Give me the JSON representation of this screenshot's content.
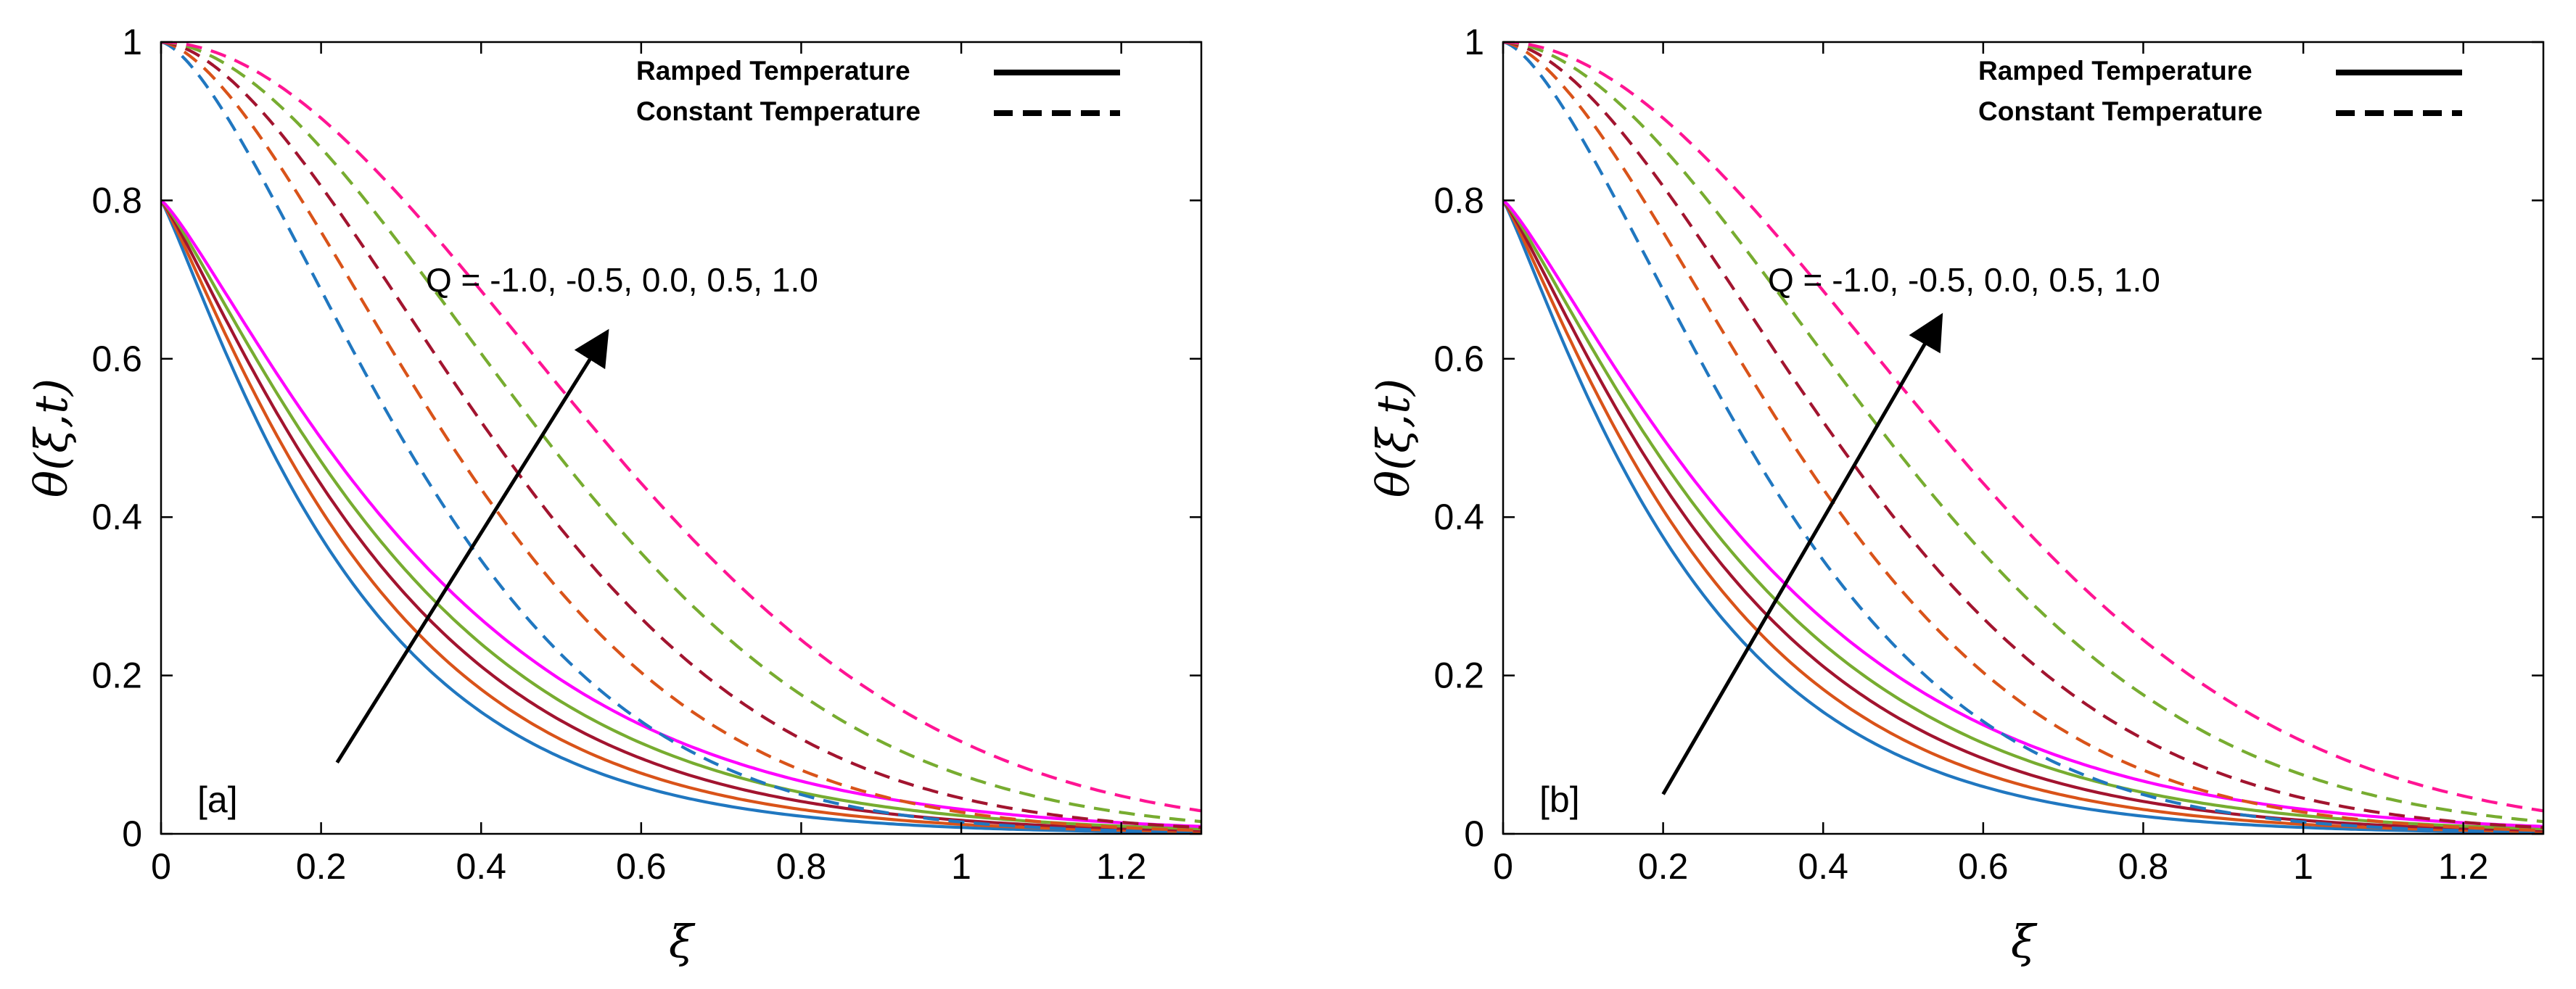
{
  "chart_data": [
    {
      "type": "line",
      "panel_label": "[a]",
      "xlabel": "ξ",
      "ylabel": "θ(ξ,t)",
      "xlim": [
        0,
        1.3
      ],
      "ylim": [
        0,
        1.0
      ],
      "xticks": [
        0,
        0.2,
        0.4,
        0.6,
        0.8,
        1,
        1.2
      ],
      "xtick_labels": [
        "0",
        "0.2",
        "0.4",
        "0.6",
        "0.8",
        "1",
        "1.2"
      ],
      "yticks": [
        0,
        0.2,
        0.4,
        0.6,
        0.8,
        1
      ],
      "ytick_labels": [
        "0",
        "0.2",
        "0.4",
        "0.6",
        "0.8",
        "1"
      ],
      "legend": {
        "placement": "top-right",
        "entries": [
          {
            "label": "Ramped Temperature",
            "style": "solid"
          },
          {
            "label": "Constant Temperature",
            "style": "dashed"
          }
        ]
      },
      "annotation": {
        "text": "Q = -1.0, -0.5, 0.0, 0.5, 1.0",
        "arrow_from": [
          0.22,
          0.09
        ],
        "arrow_to": [
          0.555,
          0.63
        ]
      },
      "series": [
        {
          "name": "Ramped, Q = -1.0",
          "style": "solid",
          "color": "#2077c0",
          "y0": 0.8,
          "k": 4.6,
          "p": 1.12
        },
        {
          "name": "Ramped, Q = -0.5",
          "style": "solid",
          "color": "#d95319",
          "y0": 0.8,
          "k": 4.2,
          "p": 1.14
        },
        {
          "name": "Ramped, Q = 0.0",
          "style": "solid",
          "color": "#a2142f",
          "y0": 0.8,
          "k": 3.85,
          "p": 1.16
        },
        {
          "name": "Ramped, Q = 0.5",
          "style": "solid",
          "color": "#77ac30",
          "y0": 0.8,
          "k": 3.55,
          "p": 1.18
        },
        {
          "name": "Ramped, Q = 1.0",
          "style": "solid",
          "color": "#ff00ff",
          "y0": 0.8,
          "k": 3.25,
          "p": 1.2
        },
        {
          "name": "Constant, Q = -1.0",
          "style": "dashed",
          "color": "#2077c0",
          "y0": 1.0,
          "k": 4.2,
          "p": 1.5
        },
        {
          "name": "Constant, Q = -0.5",
          "style": "dashed",
          "color": "#d95319",
          "y0": 1.0,
          "k": 3.6,
          "p": 1.6
        },
        {
          "name": "Constant, Q = 0.0",
          "style": "dashed",
          "color": "#a2142f",
          "y0": 1.0,
          "k": 3.1,
          "p": 1.7
        },
        {
          "name": "Constant, Q = 0.5",
          "style": "dashed",
          "color": "#77ac30",
          "y0": 1.0,
          "k": 2.6,
          "p": 1.8
        },
        {
          "name": "Constant, Q = 1.0",
          "style": "dashed",
          "color": "#ff1493",
          "y0": 1.0,
          "k": 2.15,
          "p": 1.9
        }
      ]
    },
    {
      "type": "line",
      "panel_label": "[b]",
      "xlabel": "ξ",
      "ylabel": "θ(ξ,t)",
      "xlim": [
        0,
        1.3
      ],
      "ylim": [
        0,
        1.0
      ],
      "xticks": [
        0,
        0.2,
        0.4,
        0.6,
        0.8,
        1,
        1.2
      ],
      "xtick_labels": [
        "0",
        "0.2",
        "0.4",
        "0.6",
        "0.8",
        "1",
        "1.2"
      ],
      "yticks": [
        0,
        0.2,
        0.4,
        0.6,
        0.8,
        1
      ],
      "ytick_labels": [
        "0",
        "0.2",
        "0.4",
        "0.6",
        "0.8",
        "1"
      ],
      "legend": {
        "placement": "top-right",
        "entries": [
          {
            "label": "Ramped Temperature",
            "style": "solid"
          },
          {
            "label": "Constant Temperature",
            "style": "dashed"
          }
        ]
      },
      "annotation": {
        "text": "Q = -1.0, -0.5, 0.0, 0.5, 1.0",
        "arrow_from": [
          0.2,
          0.05
        ],
        "arrow_to": [
          0.545,
          0.65
        ]
      },
      "series": [
        {
          "name": "Ramped, Q = -1.0",
          "style": "solid",
          "color": "#2077c0",
          "y0": 0.8,
          "k": 4.6,
          "p": 1.12
        },
        {
          "name": "Ramped, Q = -0.5",
          "style": "solid",
          "color": "#d95319",
          "y0": 0.8,
          "k": 4.2,
          "p": 1.14
        },
        {
          "name": "Ramped, Q = 0.0",
          "style": "solid",
          "color": "#a2142f",
          "y0": 0.8,
          "k": 3.85,
          "p": 1.16
        },
        {
          "name": "Ramped, Q = 0.5",
          "style": "solid",
          "color": "#77ac30",
          "y0": 0.8,
          "k": 3.55,
          "p": 1.18
        },
        {
          "name": "Ramped, Q = 1.0",
          "style": "solid",
          "color": "#ff00ff",
          "y0": 0.8,
          "k": 3.25,
          "p": 1.2
        },
        {
          "name": "Constant, Q = -1.0",
          "style": "dashed",
          "color": "#2077c0",
          "y0": 1.0,
          "k": 4.2,
          "p": 1.5
        },
        {
          "name": "Constant, Q = -0.5",
          "style": "dashed",
          "color": "#d95319",
          "y0": 1.0,
          "k": 3.6,
          "p": 1.6
        },
        {
          "name": "Constant, Q = 0.0",
          "style": "dashed",
          "color": "#a2142f",
          "y0": 1.0,
          "k": 3.1,
          "p": 1.7
        },
        {
          "name": "Constant, Q = 0.5",
          "style": "dashed",
          "color": "#77ac30",
          "y0": 1.0,
          "k": 2.6,
          "p": 1.8
        },
        {
          "name": "Constant, Q = 1.0",
          "style": "dashed",
          "color": "#ff1493",
          "y0": 1.0,
          "k": 2.15,
          "p": 1.9
        }
      ]
    }
  ]
}
